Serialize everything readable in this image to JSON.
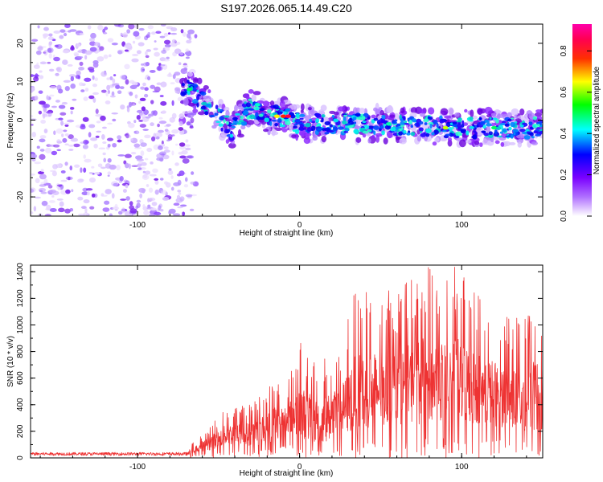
{
  "title": "S197.2026.065.14.49.C20",
  "chart_data": [
    {
      "type": "heatmap",
      "title": "S197.2026.065.14.49.C20",
      "xlabel": "Height of straight line (km)",
      "ylabel": "Frequency (Hz)",
      "xlim": [
        -166,
        150
      ],
      "ylim": [
        -25,
        25
      ],
      "xticks": [
        -100,
        0,
        100
      ],
      "yticks": [
        20,
        10,
        0,
        -10,
        -20
      ],
      "colorbar": {
        "label": "Normalized spectral amplitude",
        "range": [
          0,
          0.93
        ],
        "ticks": [
          0.0,
          0.2,
          0.4,
          0.6,
          0.8
        ],
        "tick_labels": [
          "0.0",
          "0.2",
          "0.4",
          "0.6",
          "0.8"
        ],
        "colors": [
          "#ffffff",
          "#8a00ff",
          "#0000ff",
          "#00ffff",
          "#00ff00",
          "#ffff00",
          "#ff0000",
          "#ff00aa"
        ]
      },
      "features": [
        {
          "name": "noise",
          "x_range": [
            -166,
            -70
          ],
          "y_range": [
            -25,
            25
          ],
          "amplitude": 0.05
        },
        {
          "name": "signal-trace",
          "points": [
            [
              -72,
              9
            ],
            [
              -62,
              6
            ],
            [
              -52,
              2
            ],
            [
              -42,
              -3
            ],
            [
              -32,
              3
            ],
            [
              -25,
              3
            ],
            [
              -18,
              1
            ],
            [
              -8,
              1
            ],
            [
              0,
              -1
            ],
            [
              50,
              -1
            ],
            [
              100,
              -2
            ],
            [
              150,
              -2
            ]
          ],
          "amplitude_peak": 0.9
        }
      ]
    },
    {
      "type": "line",
      "xlabel": "Height of straight line (km)",
      "ylabel": "SNR (10 * v/v)",
      "xlim": [
        -166,
        150
      ],
      "ylim": [
        0,
        1450
      ],
      "xticks": [
        -100,
        0,
        100
      ],
      "yticks": [
        0,
        200,
        400,
        600,
        800,
        1000,
        1200,
        1400
      ],
      "color": "#ee3333",
      "series": [
        {
          "name": "SNR",
          "envelope": [
            {
              "x": -166,
              "baseline": 30,
              "max": 50
            },
            {
              "x": -70,
              "baseline": 30,
              "max": 60
            },
            {
              "x": -55,
              "baseline": 60,
              "max": 250
            },
            {
              "x": -45,
              "baseline": 100,
              "max": 380
            },
            {
              "x": -30,
              "baseline": 80,
              "max": 420
            },
            {
              "x": -15,
              "baseline": 120,
              "max": 620
            },
            {
              "x": -8,
              "baseline": 200,
              "max": 560
            },
            {
              "x": 0,
              "baseline": 150,
              "max": 880
            },
            {
              "x": 10,
              "baseline": 100,
              "max": 720
            },
            {
              "x": 25,
              "baseline": 150,
              "max": 820
            },
            {
              "x": 35,
              "baseline": 200,
              "max": 1300
            },
            {
              "x": 60,
              "baseline": 250,
              "max": 1250
            },
            {
              "x": 75,
              "baseline": 250,
              "max": 1430
            },
            {
              "x": 97,
              "baseline": 250,
              "max": 1450
            },
            {
              "x": 115,
              "baseline": 250,
              "max": 1180
            },
            {
              "x": 135,
              "baseline": 200,
              "max": 1050
            },
            {
              "x": 150,
              "baseline": 200,
              "max": 1220
            }
          ]
        }
      ]
    }
  ]
}
